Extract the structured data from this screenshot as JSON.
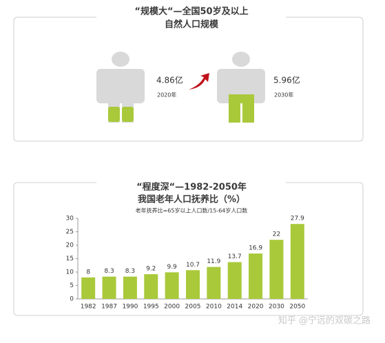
{
  "population_panel": {
    "title_lines": [
      "“规模大“—全国50岁及以上",
      "自然人口规模"
    ],
    "items": [
      {
        "value": "4.86亿",
        "year": "2020年"
      },
      {
        "value": "5.96亿",
        "year": "2030年"
      }
    ]
  },
  "chart_data": {
    "type": "bar",
    "title": "“程度深“—1982-2050年",
    "subtitle": "我国老年人口抚养比（%）",
    "note": "老年抚养比=65岁以上人口数/15-64岁人口数",
    "categories": [
      "1982",
      "1987",
      "1990",
      "1995",
      "2000",
      "2005",
      "2010",
      "2014",
      "2020",
      "2030",
      "2050"
    ],
    "values": [
      8,
      8.3,
      8.3,
      9.2,
      9.9,
      10.7,
      11.9,
      13.7,
      16.9,
      22,
      27.9
    ],
    "color": "#a9c93a",
    "ylim": [
      0,
      30
    ],
    "yticks": [
      0,
      5,
      10,
      15,
      20,
      25,
      30
    ],
    "grid": false
  },
  "watermark": "知乎 @宁远的双碳之路"
}
